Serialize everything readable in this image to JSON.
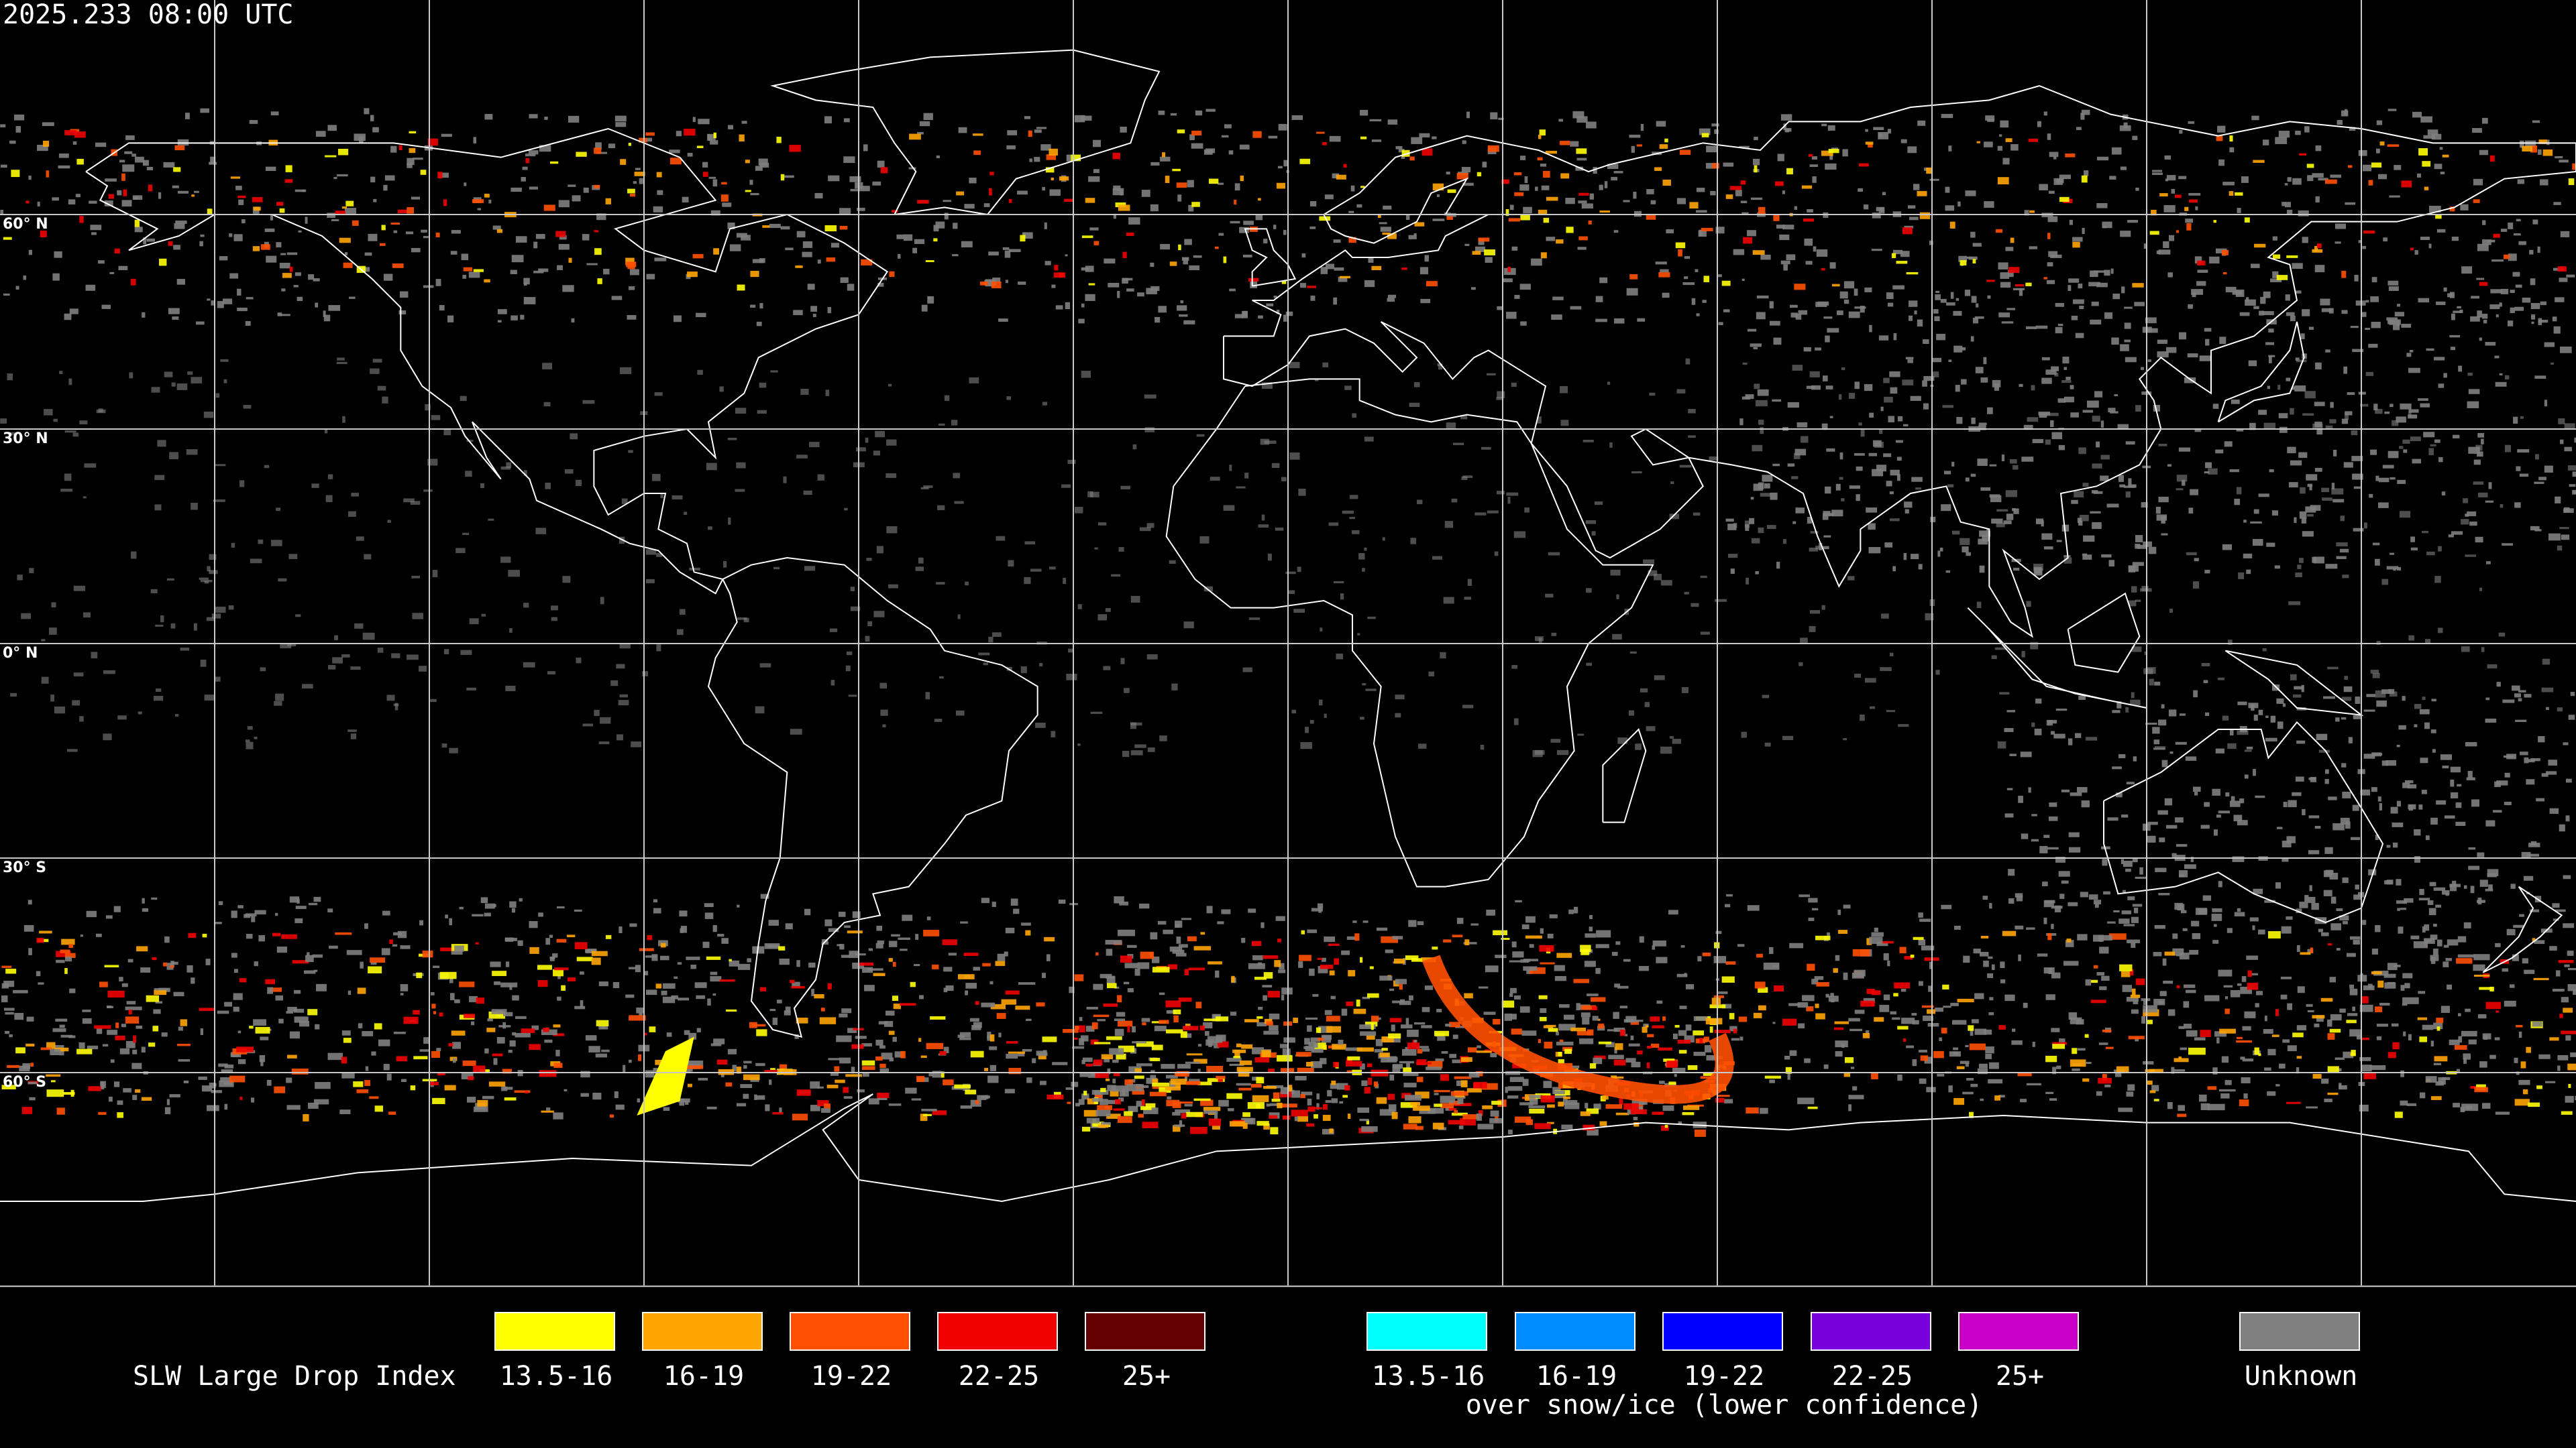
{
  "header": {
    "timestamp": "2025.233 08:00 UTC"
  },
  "map": {
    "projection": "equirectangular",
    "background_color": "#000000",
    "coastline_color": "#ffffff",
    "grid_color": "#c8c8c8",
    "grid_spacing_degrees": 30,
    "lat_labels": [
      "60° N",
      "30° N",
      "0° N",
      "30° S",
      "60° S"
    ]
  },
  "legend": {
    "title": "SLW Large Drop Index",
    "primary": [
      {
        "label": "13.5-16",
        "color": "#ffff00"
      },
      {
        "label": "16-19",
        "color": "#ffa500"
      },
      {
        "label": "19-22",
        "color": "#ff5000"
      },
      {
        "label": "22-25",
        "color": "#f00000"
      },
      {
        "label": "25+",
        "color": "#640000"
      }
    ],
    "snow_ice": [
      {
        "label": "13.5-16",
        "color": "#00ffff"
      },
      {
        "label": "16-19",
        "color": "#008cff"
      },
      {
        "label": "19-22",
        "color": "#0000ff"
      },
      {
        "label": "22-25",
        "color": "#7800dc"
      },
      {
        "label": "25+",
        "color": "#c800c8"
      }
    ],
    "snow_ice_caption": "over snow/ice (lower confidence)",
    "unknown": {
      "label": "Unknown",
      "color": "#808080"
    }
  }
}
